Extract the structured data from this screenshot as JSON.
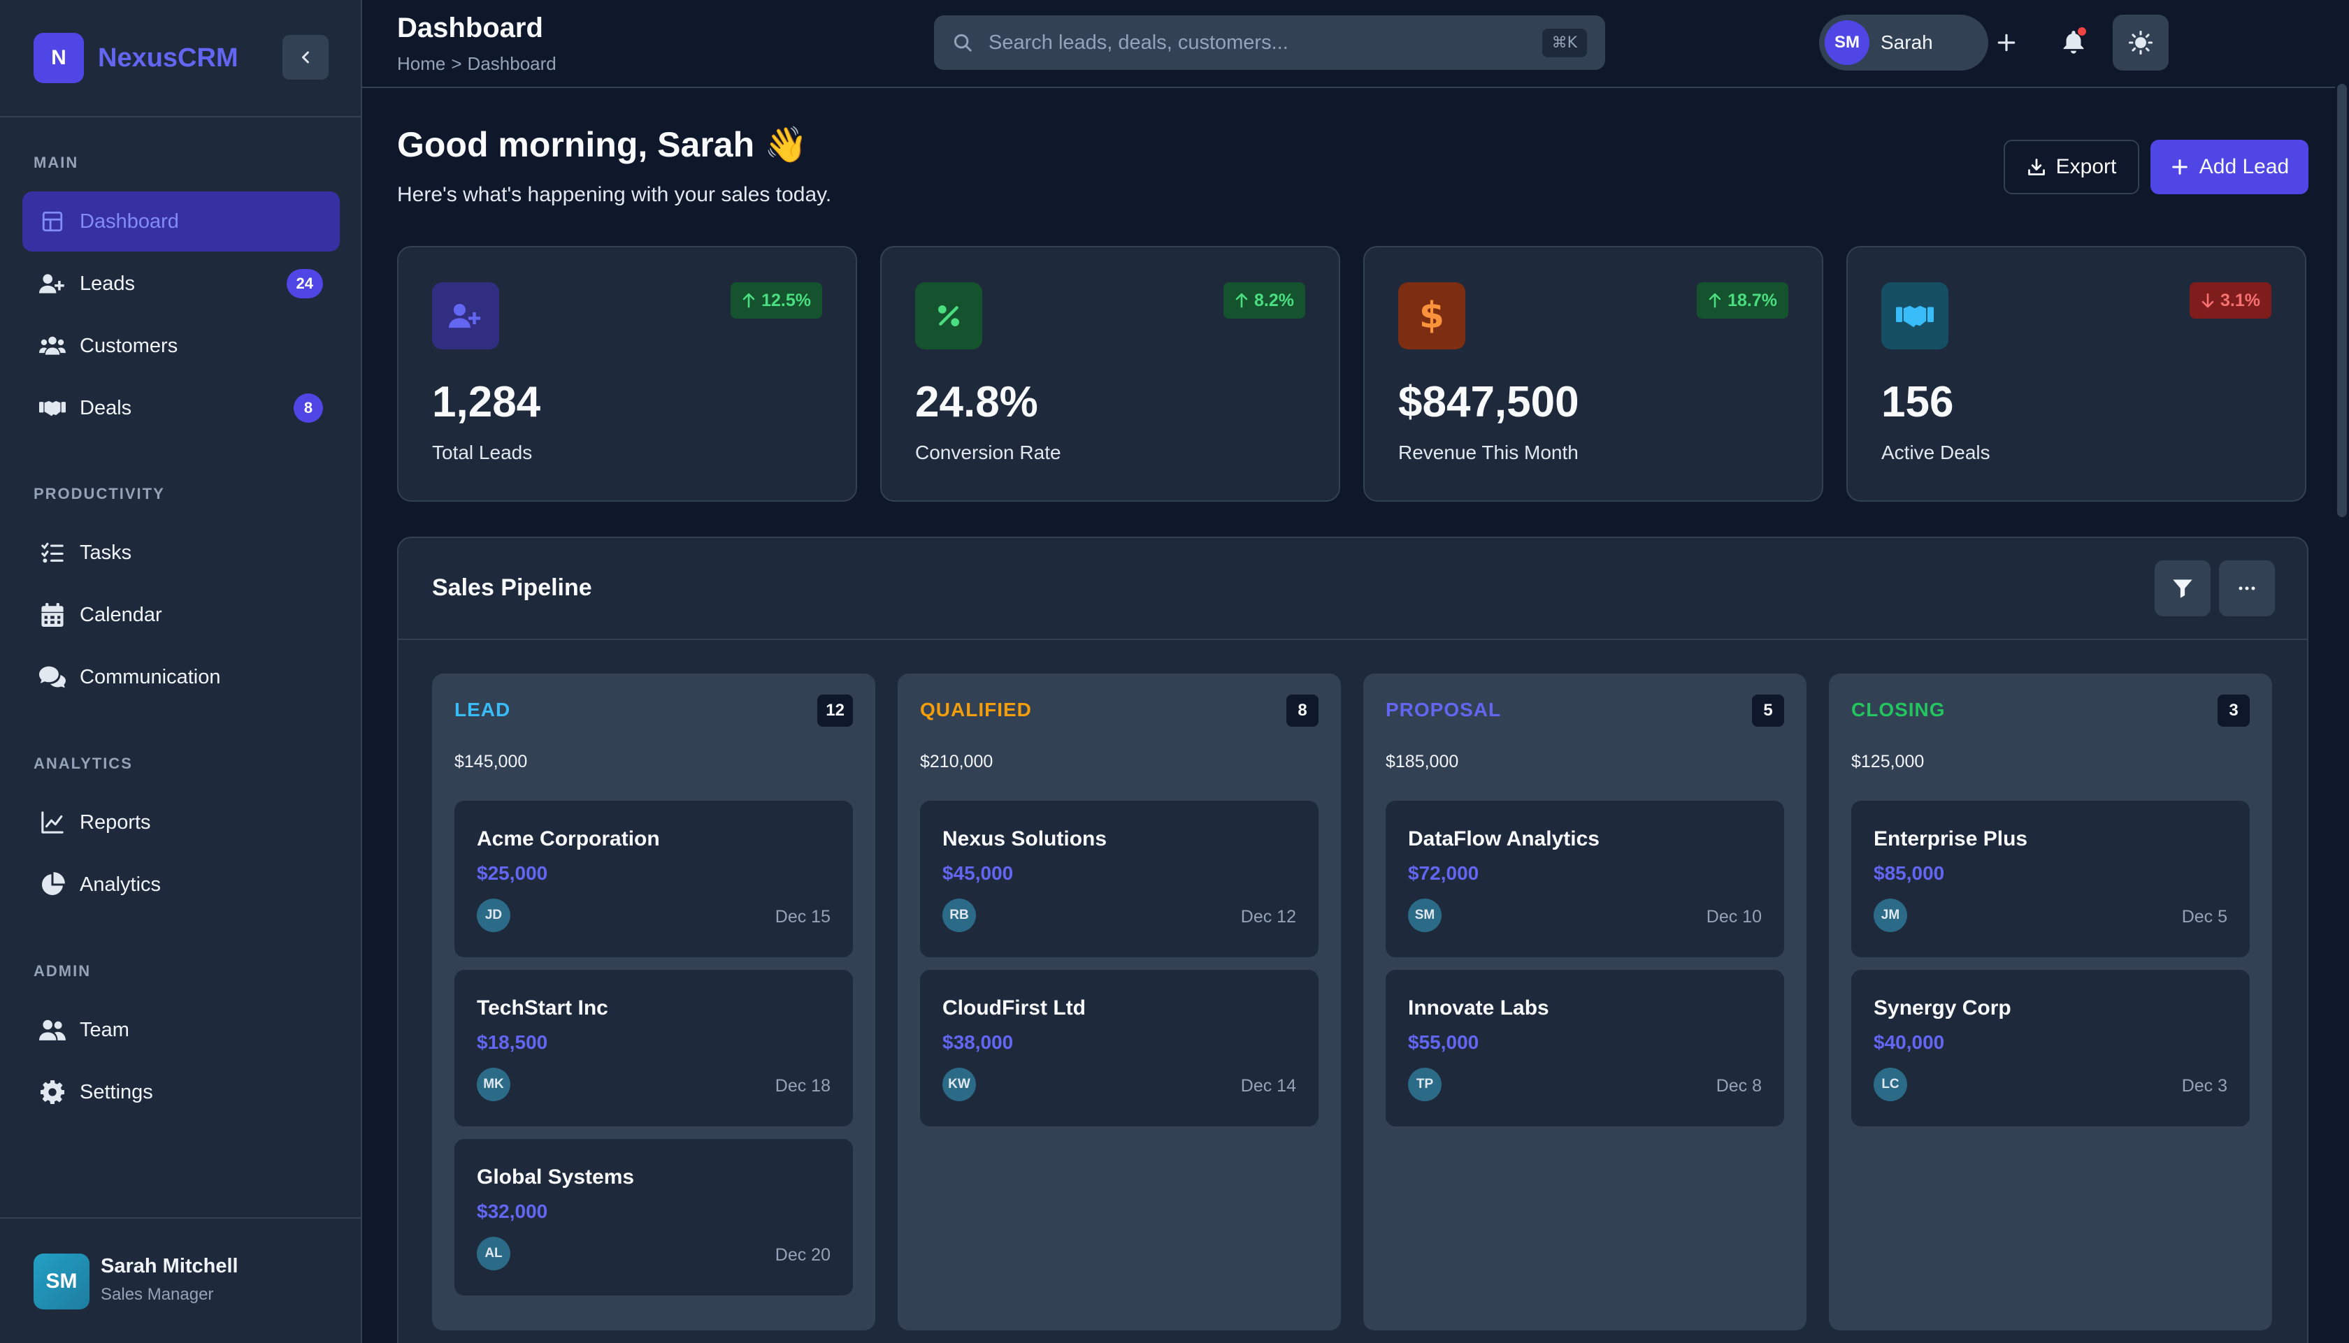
{
  "app": {
    "brand_initial": "N",
    "brand_name": "NexusCRM"
  },
  "sidebar": {
    "sections": [
      {
        "title": "MAIN"
      },
      {
        "title": "PRODUCTIVITY"
      },
      {
        "title": "ANALYTICS"
      },
      {
        "title": "ADMIN"
      }
    ],
    "items": [
      {
        "label": "Dashboard",
        "icon": "grid-icon",
        "active": true
      },
      {
        "label": "Leads",
        "icon": "user-plus-icon",
        "badge": "24"
      },
      {
        "label": "Customers",
        "icon": "users-icon"
      },
      {
        "label": "Deals",
        "icon": "handshake-icon",
        "badge": "8"
      },
      {
        "label": "Tasks",
        "icon": "tasks-icon"
      },
      {
        "label": "Calendar",
        "icon": "calendar-icon"
      },
      {
        "label": "Communication",
        "icon": "chat-icon"
      },
      {
        "label": "Reports",
        "icon": "line-chart-icon"
      },
      {
        "label": "Analytics",
        "icon": "pie-chart-icon"
      },
      {
        "label": "Team",
        "icon": "team-icon"
      },
      {
        "label": "Settings",
        "icon": "gear-icon"
      }
    ],
    "user": {
      "initials": "SM",
      "name": "Sarah Mitchell",
      "role": "Sales Manager"
    }
  },
  "header": {
    "title": "Dashboard",
    "breadcrumb": [
      "Home",
      "Dashboard"
    ],
    "breadcrumb_separator": ">",
    "search_placeholder": "Search leads, deals, customers...",
    "search_shortcut": "⌘K",
    "profile_initials": "SM",
    "profile_name": "Sarah"
  },
  "main": {
    "greeting": "Good morning, Sarah 👋",
    "subtitle": "Here's what's happening with your sales today.",
    "export_label": "Export",
    "add_lead_label": "Add Lead",
    "stats": [
      {
        "value": "1,284",
        "label": "Total Leads",
        "change": "12.5%",
        "trend": "up",
        "icon": "user-plus-icon",
        "color": "#6366f1"
      },
      {
        "value": "24.8%",
        "label": "Conversion Rate",
        "change": "8.2%",
        "trend": "up",
        "icon": "percent-icon",
        "color": "#22c55e"
      },
      {
        "value": "$847,500",
        "label": "Revenue This Month",
        "change": "18.7%",
        "trend": "up",
        "icon": "dollar-icon",
        "color": "#f97316"
      },
      {
        "value": "156",
        "label": "Active Deals",
        "change": "3.1%",
        "trend": "down",
        "icon": "handshake-icon",
        "color": "#22a0c4"
      }
    ]
  },
  "pipeline": {
    "title": "Sales Pipeline",
    "columns": [
      {
        "name": "LEAD",
        "count": "12",
        "total": "$145,000",
        "color": "#38bdf8",
        "deals": [
          {
            "name": "Acme Corporation",
            "amount": "$25,000",
            "owner": "JD",
            "date": "Dec 15"
          },
          {
            "name": "TechStart Inc",
            "amount": "$18,500",
            "owner": "MK",
            "date": "Dec 18"
          },
          {
            "name": "Global Systems",
            "amount": "$32,000",
            "owner": "AL",
            "date": "Dec 20"
          }
        ]
      },
      {
        "name": "QUALIFIED",
        "count": "8",
        "total": "$210,000",
        "color": "#f59e0b",
        "deals": [
          {
            "name": "Nexus Solutions",
            "amount": "$45,000",
            "owner": "RB",
            "date": "Dec 12"
          },
          {
            "name": "CloudFirst Ltd",
            "amount": "$38,000",
            "owner": "KW",
            "date": "Dec 14"
          }
        ]
      },
      {
        "name": "PROPOSAL",
        "count": "5",
        "total": "$185,000",
        "color": "#6366f1",
        "deals": [
          {
            "name": "DataFlow Analytics",
            "amount": "$72,000",
            "owner": "SM",
            "date": "Dec 10"
          },
          {
            "name": "Innovate Labs",
            "amount": "$55,000",
            "owner": "TP",
            "date": "Dec 8"
          }
        ]
      },
      {
        "name": "CLOSING",
        "count": "3",
        "total": "$125,000",
        "color": "#22c55e",
        "deals": [
          {
            "name": "Enterprise Plus",
            "amount": "$85,000",
            "owner": "JM",
            "date": "Dec 5"
          },
          {
            "name": "Synergy Corp",
            "amount": "$40,000",
            "owner": "LC",
            "date": "Dec 3"
          }
        ]
      }
    ]
  }
}
